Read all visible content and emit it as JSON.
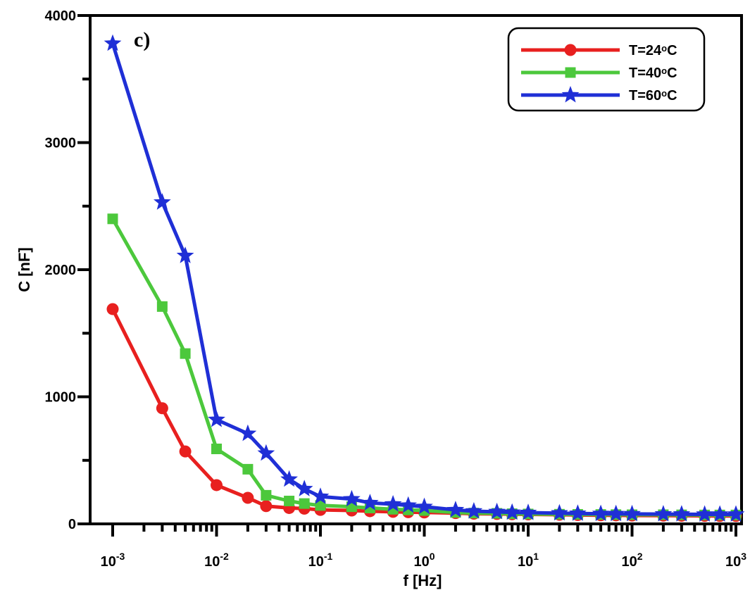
{
  "chart_data": {
    "type": "line",
    "panel_label": "c)",
    "xlabel": "f [Hz]",
    "ylabel": "C [nF]",
    "x_scale": "log",
    "xlim": [
      0.001,
      1000
    ],
    "ylim": [
      0,
      4000
    ],
    "yticks": [
      0,
      1000,
      2000,
      3000,
      4000
    ],
    "xticks": [
      {
        "value": 0.001,
        "base": "10",
        "exp": "-3"
      },
      {
        "value": 0.01,
        "base": "10",
        "exp": "-2"
      },
      {
        "value": 0.1,
        "base": "10",
        "exp": "-1"
      },
      {
        "value": 1,
        "base": "10",
        "exp": "0"
      },
      {
        "value": 10,
        "base": "10",
        "exp": "1"
      },
      {
        "value": 100,
        "base": "10",
        "exp": "2"
      },
      {
        "value": 1000,
        "base": "10",
        "exp": "3"
      }
    ],
    "x": [
      0.001,
      0.003,
      0.005,
      0.01,
      0.02,
      0.03,
      0.05,
      0.07,
      0.1,
      0.2,
      0.3,
      0.5,
      0.7,
      1,
      2,
      3,
      5,
      7,
      10,
      20,
      30,
      50,
      70,
      100,
      200,
      300,
      500,
      700,
      1000
    ],
    "series": [
      {
        "name": "T=24°C",
        "label_main": "T=24",
        "label_deg": "o",
        "label_unit": "C",
        "color": "#e8201f",
        "marker": "circle",
        "values": [
          1690,
          910,
          570,
          305,
          205,
          140,
          125,
          120,
          110,
          105,
          100,
          95,
          92,
          90,
          85,
          80,
          78,
          76,
          75,
          72,
          70,
          68,
          67,
          66,
          65,
          64,
          63,
          62,
          62
        ]
      },
      {
        "name": "T=40°C",
        "label_main": "T=40",
        "label_deg": "o",
        "label_unit": "C",
        "color": "#4cc83c",
        "marker": "square",
        "values": [
          2400,
          1710,
          1340,
          590,
          430,
          225,
          180,
          160,
          145,
          135,
          125,
          115,
          110,
          105,
          90,
          85,
          83,
          80,
          78,
          76,
          75,
          74,
          73,
          72,
          72,
          71,
          70,
          70,
          70
        ]
      },
      {
        "name": "T=60°C",
        "label_main": "T=60",
        "label_deg": "o",
        "label_unit": "C",
        "color": "#1f2fd6",
        "marker": "star",
        "values": [
          3780,
          2530,
          2110,
          820,
          710,
          555,
          350,
          275,
          215,
          195,
          165,
          155,
          145,
          135,
          110,
          100,
          95,
          90,
          88,
          85,
          82,
          80,
          79,
          78,
          77,
          76,
          75,
          75,
          75
        ]
      }
    ],
    "legend_position": "top-right",
    "grid": false
  }
}
